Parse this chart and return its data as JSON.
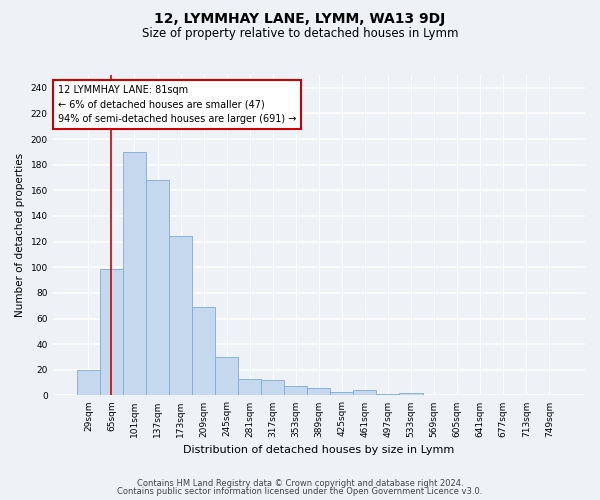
{
  "title": "12, LYMMHAY LANE, LYMM, WA13 9DJ",
  "subtitle": "Size of property relative to detached houses in Lymm",
  "xlabel": "Distribution of detached houses by size in Lymm",
  "ylabel": "Number of detached properties",
  "bar_color": "#c5d8ed",
  "bar_edge_color": "#7bacd4",
  "categories": [
    "29sqm",
    "65sqm",
    "101sqm",
    "137sqm",
    "173sqm",
    "209sqm",
    "245sqm",
    "281sqm",
    "317sqm",
    "353sqm",
    "389sqm",
    "425sqm",
    "461sqm",
    "497sqm",
    "533sqm",
    "569sqm",
    "605sqm",
    "641sqm",
    "677sqm",
    "713sqm",
    "749sqm"
  ],
  "values": [
    20,
    99,
    190,
    168,
    124,
    69,
    30,
    13,
    12,
    7,
    6,
    3,
    4,
    1,
    2,
    0,
    0,
    0,
    0,
    0,
    0
  ],
  "annotation_text": "12 LYMMHAY LANE: 81sqm\n← 6% of detached houses are smaller (47)\n94% of semi-detached houses are larger (691) →",
  "vline_x": 1.0,
  "ylim": [
    0,
    250
  ],
  "yticks": [
    0,
    20,
    40,
    60,
    80,
    100,
    120,
    140,
    160,
    180,
    200,
    220,
    240
  ],
  "footnote1": "Contains HM Land Registry data © Crown copyright and database right 2024.",
  "footnote2": "Contains public sector information licensed under the Open Government Licence v3.0.",
  "background_color": "#eef2f7",
  "grid_color": "#ffffff",
  "vline_color": "#cc0000",
  "title_fontsize": 10,
  "subtitle_fontsize": 8.5,
  "xlabel_fontsize": 8,
  "ylabel_fontsize": 7.5,
  "tick_fontsize": 6.5,
  "annot_fontsize": 7,
  "footnote_fontsize": 6
}
